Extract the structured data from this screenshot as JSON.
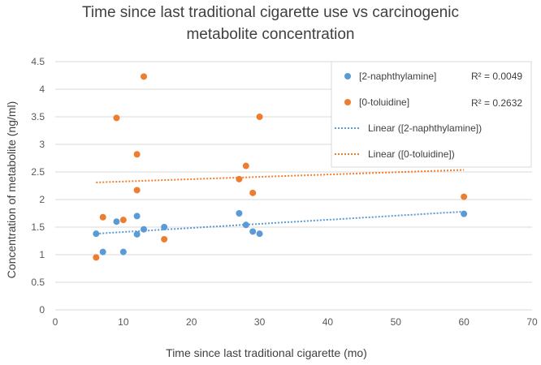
{
  "chart_data": {
    "type": "scatter",
    "title_lines": [
      "Time since last traditional cigarette use vs carcinogenic",
      "metabolite concentration"
    ],
    "xlabel": "Time since last traditional cigarette (mo)",
    "ylabel": "Concentration of metabolite (ng/ml)",
    "xlim": [
      0,
      70
    ],
    "ylim": [
      0,
      4.5
    ],
    "x_ticks": [
      "0",
      "10",
      "20",
      "30",
      "40",
      "50",
      "60",
      "70"
    ],
    "y_ticks": [
      "0",
      "0.5",
      "1",
      "1.5",
      "2",
      "2.5",
      "3",
      "3.5",
      "4",
      "4.5"
    ],
    "gridlines": "horizontal",
    "legend_position": "top-right",
    "series": [
      {
        "name": "[2-naphthylamine]",
        "color": "#5B9BD5",
        "r_squared": "R² = 0.0049",
        "trendline_name": "Linear ([2-naphthylamine])",
        "trendline": [
          1.337,
          0.0074
        ],
        "points": [
          [
            6,
            1.38
          ],
          [
            7,
            1.05
          ],
          [
            9,
            1.6
          ],
          [
            10,
            1.05
          ],
          [
            12,
            1.7
          ],
          [
            12,
            1.37
          ],
          [
            13,
            1.46
          ],
          [
            16,
            1.5
          ],
          [
            27,
            1.75
          ],
          [
            28,
            1.54
          ],
          [
            29,
            1.42
          ],
          [
            30,
            1.38
          ],
          [
            60,
            1.74
          ]
        ]
      },
      {
        "name": "[0-toluidine]",
        "color": "#ED7D31",
        "r_squared": "R² = 0.2632",
        "trendline_name": "Linear ([0-toluidine])",
        "trendline": [
          2.285,
          0.0042
        ],
        "points": [
          [
            6,
            0.95
          ],
          [
            7,
            1.68
          ],
          [
            9,
            3.48
          ],
          [
            10,
            1.63
          ],
          [
            12,
            2.82
          ],
          [
            12,
            2.17
          ],
          [
            13,
            4.23
          ],
          [
            16,
            1.28
          ],
          [
            27,
            2.37
          ],
          [
            28,
            2.61
          ],
          [
            29,
            2.12
          ],
          [
            30,
            3.5
          ],
          [
            60,
            2.05
          ]
        ]
      }
    ]
  }
}
